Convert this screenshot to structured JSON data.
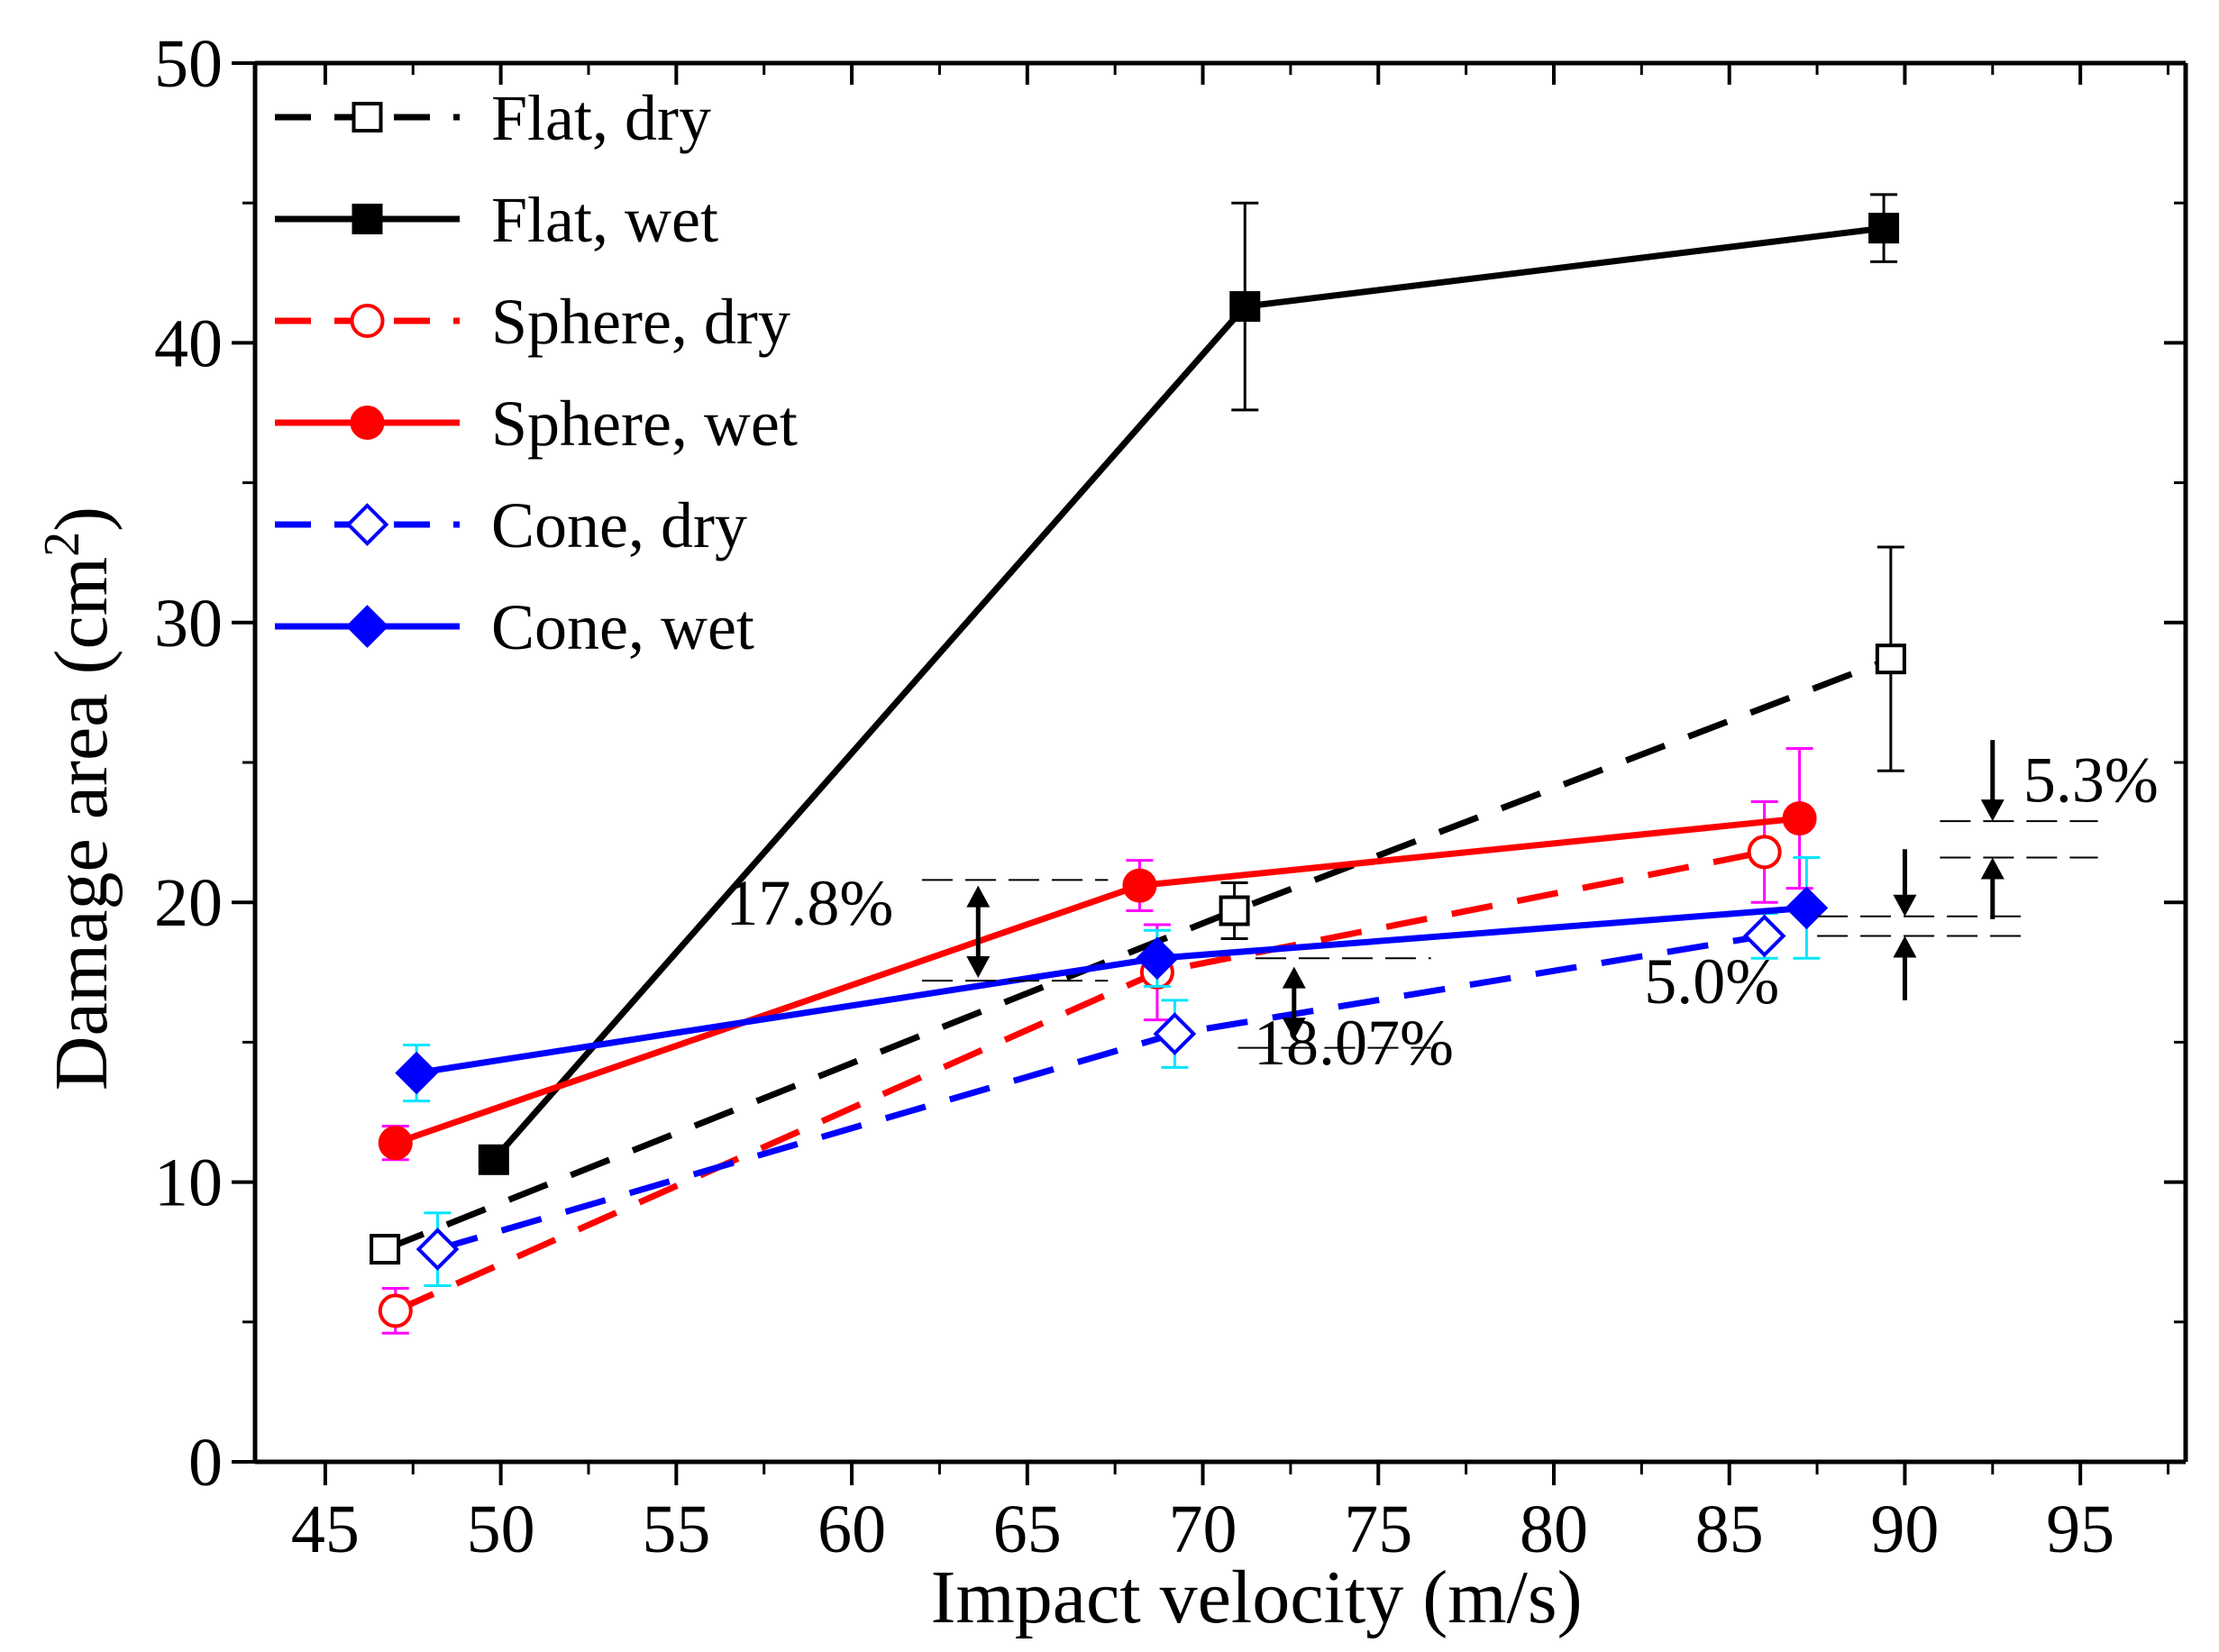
{
  "chart_data": {
    "type": "line",
    "xlabel": "Impact velocity (m/s)",
    "ylabel": "Damage area (cm",
    "ylabel_sup": "2",
    "ylabel_end": ")",
    "xlim": [
      43,
      98
    ],
    "ylim": [
      0,
      50
    ],
    "xticks": [
      45,
      50,
      55,
      60,
      65,
      70,
      75,
      80,
      85,
      90,
      95
    ],
    "yticks": [
      0,
      10,
      20,
      30,
      40,
      50
    ],
    "grid": false,
    "legend_position": "top-left",
    "series": [
      {
        "name": "Flat, dry",
        "color": "#000000",
        "dashed": true,
        "marker": "square",
        "filled": false,
        "x": [
          46.7,
          70.9,
          89.6
        ],
        "y": [
          7.6,
          19.7,
          28.7
        ],
        "err": [
          0.4,
          1.0,
          4.0
        ]
      },
      {
        "name": "Flat, wet",
        "color": "#000000",
        "dashed": false,
        "marker": "square",
        "filled": true,
        "x": [
          49.8,
          71.2,
          89.4
        ],
        "y": [
          10.8,
          41.3,
          44.1
        ],
        "err": [
          0.3,
          3.7,
          1.2
        ]
      },
      {
        "name": "Sphere, dry",
        "color": "#ff0000",
        "dashed": true,
        "marker": "circle",
        "filled": false,
        "x": [
          47.0,
          68.7,
          86.0
        ],
        "y": [
          5.4,
          17.5,
          21.8
        ],
        "err": [
          0.8,
          1.7,
          1.8
        ],
        "err_color": "#ff00ff"
      },
      {
        "name": "Sphere, wet",
        "color": "#ff0000",
        "dashed": false,
        "marker": "circle",
        "filled": true,
        "x": [
          47.0,
          68.2,
          87.0
        ],
        "y": [
          11.4,
          20.6,
          23.0
        ],
        "err": [
          0.6,
          0.9,
          2.5
        ],
        "err_color": "#ff00ff"
      },
      {
        "name": "Cone, dry",
        "color": "#0000ff",
        "dashed": true,
        "marker": "diamond",
        "filled": false,
        "x": [
          48.2,
          69.2,
          86.0
        ],
        "y": [
          7.6,
          15.3,
          18.8
        ],
        "err": [
          1.3,
          1.2,
          0.8
        ],
        "err_color": "#00e5ff"
      },
      {
        "name": "Cone, wet",
        "color": "#0000ff",
        "dashed": false,
        "marker": "diamond",
        "filled": true,
        "x": [
          47.6,
          68.7,
          87.2
        ],
        "y": [
          13.9,
          18.0,
          19.8
        ],
        "err": [
          1.0,
          1.0,
          1.8
        ],
        "err_color": "#00e5ff"
      }
    ],
    "annotations": [
      {
        "text": "17.8%",
        "x": 58.8,
        "y": 19.2
      },
      {
        "text": "18.07%",
        "x": 74.3,
        "y": 14.2
      },
      {
        "text": "5.3%",
        "x": 95.3,
        "y": 23.6
      },
      {
        "text": "5.0%",
        "x": 84.5,
        "y": 16.4
      }
    ]
  }
}
